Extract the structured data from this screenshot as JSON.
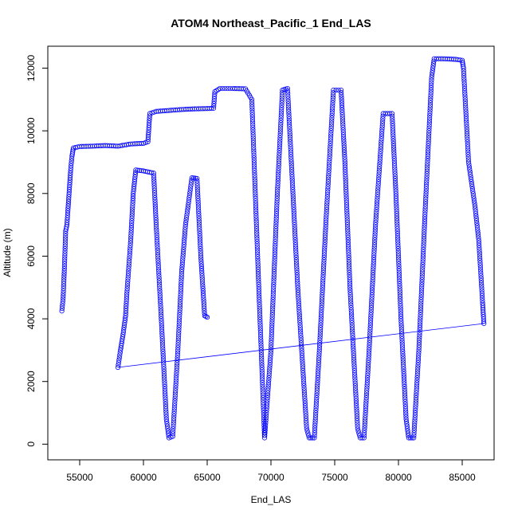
{
  "chart_data": {
    "type": "scatter",
    "title": "ATOM4 Northeast_Pacific_1 End_LAS",
    "xlabel": "End_LAS",
    "ylabel": "Altitude (m)",
    "xlim": [
      52500,
      87500
    ],
    "ylim": [
      -500,
      12700
    ],
    "x_ticks": [
      55000,
      60000,
      65000,
      70000,
      75000,
      80000,
      85000
    ],
    "y_ticks": [
      0,
      2000,
      4000,
      6000,
      8000,
      10000,
      12000
    ],
    "grid": false,
    "legend": "none",
    "marker": "open-circle",
    "color": "#0000ff",
    "series": [
      {
        "values": [
          [
            53600,
            4250
          ],
          [
            53700,
            4650
          ],
          [
            53800,
            5600
          ],
          [
            53900,
            6800
          ],
          [
            54000,
            7000
          ],
          [
            54100,
            7600
          ],
          [
            54200,
            8200
          ],
          [
            54300,
            8800
          ],
          [
            54400,
            9200
          ],
          [
            54500,
            9450
          ],
          [
            55000,
            9500
          ],
          [
            56000,
            9510
          ],
          [
            57000,
            9530
          ],
          [
            58000,
            9510
          ],
          [
            59000,
            9580
          ],
          [
            60000,
            9600
          ],
          [
            60350,
            9650
          ],
          [
            60500,
            10550
          ],
          [
            61000,
            10620
          ],
          [
            62000,
            10650
          ],
          [
            63000,
            10680
          ],
          [
            64000,
            10700
          ],
          [
            65000,
            10710
          ],
          [
            65500,
            10720
          ],
          [
            65600,
            11250
          ],
          [
            66000,
            11350
          ],
          [
            67000,
            11350
          ],
          [
            68000,
            11340
          ],
          [
            68500,
            11000
          ],
          [
            69000,
            5500
          ],
          [
            69500,
            200
          ],
          [
            70000,
            3000
          ],
          [
            70500,
            8000
          ],
          [
            70900,
            11300
          ],
          [
            71300,
            11350
          ],
          [
            71600,
            9000
          ],
          [
            72100,
            5000
          ],
          [
            72800,
            500
          ],
          [
            73000,
            200
          ],
          [
            73400,
            200
          ],
          [
            73800,
            3000
          ],
          [
            74300,
            7000
          ],
          [
            74900,
            11300
          ],
          [
            75500,
            11300
          ],
          [
            75800,
            9000
          ],
          [
            76200,
            5000
          ],
          [
            76800,
            500
          ],
          [
            77000,
            200
          ],
          [
            77300,
            200
          ],
          [
            77700,
            3000
          ],
          [
            78200,
            7000
          ],
          [
            78800,
            10550
          ],
          [
            79500,
            10550
          ],
          [
            79800,
            8000
          ],
          [
            80200,
            4000
          ],
          [
            80600,
            800
          ],
          [
            80800,
            200
          ],
          [
            81200,
            200
          ],
          [
            81600,
            3000
          ],
          [
            82100,
            7500
          ],
          [
            82600,
            11700
          ],
          [
            82800,
            12300
          ],
          [
            83500,
            12300
          ],
          [
            84500,
            12280
          ],
          [
            85000,
            12250
          ],
          [
            85100,
            12000
          ],
          [
            85500,
            9000
          ],
          [
            86000,
            7600
          ],
          [
            86300,
            6500
          ],
          [
            86600,
            4500
          ],
          [
            86700,
            3850
          ]
        ]
      },
      {
        "values": [
          [
            58000,
            2450
          ],
          [
            58200,
            3000
          ],
          [
            58400,
            3500
          ],
          [
            58600,
            4100
          ],
          [
            58700,
            4800
          ],
          [
            59000,
            6500
          ],
          [
            59200,
            8000
          ],
          [
            59400,
            8750
          ],
          [
            60000,
            8720
          ],
          [
            60800,
            8650
          ],
          [
            61000,
            7000
          ],
          [
            61400,
            4000
          ],
          [
            61800,
            800
          ],
          [
            62000,
            200
          ],
          [
            62300,
            250
          ],
          [
            62700,
            3000
          ],
          [
            63000,
            5500
          ],
          [
            63300,
            7000
          ],
          [
            63800,
            8500
          ],
          [
            64200,
            8480
          ],
          [
            64500,
            6000
          ],
          [
            64800,
            4100
          ],
          [
            65000,
            4050
          ]
        ]
      }
    ],
    "line": [
      [
        58000,
        2450
      ],
      [
        86700,
        3850
      ]
    ]
  }
}
